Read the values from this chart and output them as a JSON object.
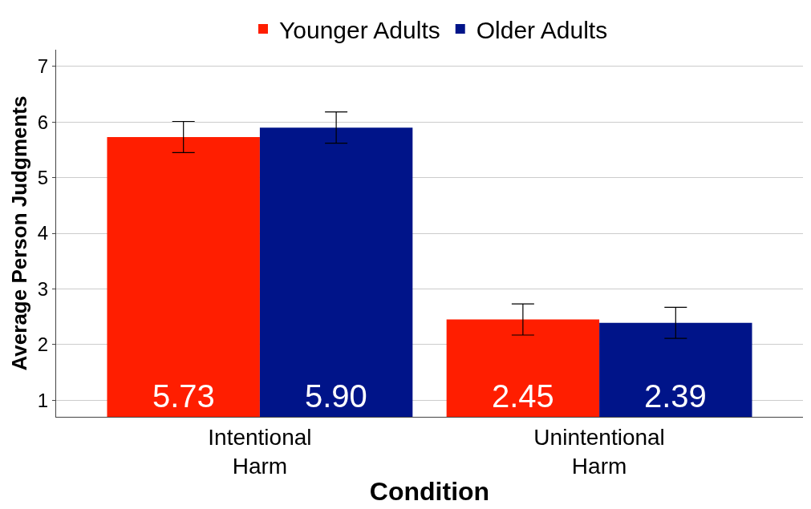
{
  "chart_data": {
    "type": "bar",
    "xlabel": "Condition",
    "ylabel": "Average Person Judgments",
    "categories": [
      "Intentional\nHarm",
      "Unintentional\nHarm"
    ],
    "series": [
      {
        "name": "Younger Adults",
        "color": "#ff1e00",
        "values": [
          5.73,
          2.45
        ],
        "errors": [
          0.28,
          0.28
        ],
        "value_labels": [
          "5.73",
          "2.45"
        ]
      },
      {
        "name": "Older Adults",
        "color": "#001489",
        "values": [
          5.9,
          2.39
        ],
        "errors": [
          0.28,
          0.28
        ],
        "value_labels": [
          "5.90",
          "2.39"
        ]
      }
    ],
    "ylim": [
      0.7,
      7.3
    ],
    "yticks": [
      1,
      2,
      3,
      4,
      5,
      6,
      7
    ],
    "grid": "y",
    "legend": "top"
  }
}
